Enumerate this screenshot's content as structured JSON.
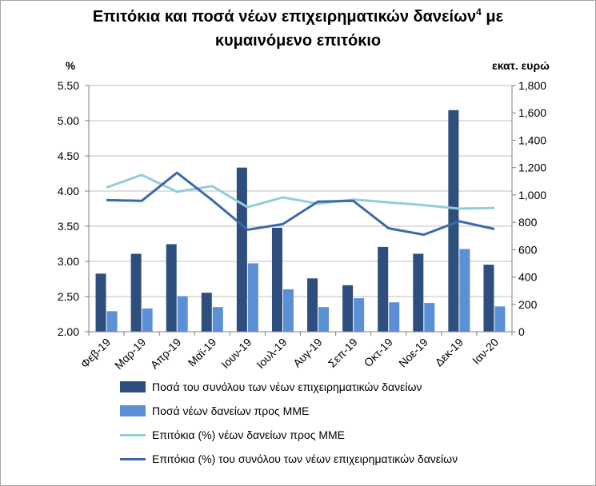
{
  "title": {
    "main": "Επιτόκια και ποσά νέων επιχειρηματικών δανείων",
    "footnote": "4",
    "line1_end": "με",
    "line2": "κυμαινόμενο επιτόκιο"
  },
  "colors": {
    "total_amount_bar": "#2e4e7e",
    "sme_amount_bar": "#5b8fd6",
    "sme_rate_line": "#92cddc",
    "total_rate_line": "#3b6aa8",
    "gridline": "#bfbfbf"
  },
  "chart_data": {
    "type": "bar",
    "title": "Επιτόκια και ποσά νέων επιχειρηματικών δανείων4 με κυμαινόμενο επιτόκιο",
    "categories": [
      "Φεβ-19",
      "Μαρ-19",
      "Απρ-19",
      "Μαϊ-19",
      "Ιουν-19",
      "Ιουλ-19",
      "Αυγ-19",
      "Σεπ-19",
      "Οκτ-19",
      "Νοε-19",
      "Δεκ-19",
      "Ιαν-20"
    ],
    "left_axis": {
      "label": "%",
      "ylim": [
        2.0,
        5.5
      ],
      "ticks": [
        "2.00",
        "2.50",
        "3.00",
        "3.50",
        "4.00",
        "4.50",
        "5.00",
        "5.50"
      ]
    },
    "right_axis": {
      "label": "εκατ. ευρώ",
      "ylim": [
        0,
        1800
      ],
      "ticks": [
        "0",
        "200",
        "400",
        "600",
        "800",
        "1,000",
        "1,200",
        "1,400",
        "1,600",
        "1,800"
      ]
    },
    "grid": true,
    "legend_position": "bottom",
    "series": [
      {
        "name": "Ποσά του συνόλου των νέων επιχειρηματικών δανείων",
        "type": "bar",
        "axis": "right",
        "values": [
          425,
          570,
          640,
          285,
          1200,
          760,
          390,
          340,
          620,
          570,
          1620,
          490
        ]
      },
      {
        "name": "Ποσά νέων δανείων προς ΜΜΕ",
        "type": "bar",
        "axis": "right",
        "values": [
          150,
          170,
          260,
          180,
          500,
          310,
          180,
          245,
          215,
          210,
          605,
          185
        ]
      },
      {
        "name": "Επιτόκια (%) νέων δανείων προς ΜΜΕ",
        "type": "line",
        "axis": "left",
        "values": [
          4.05,
          4.23,
          3.99,
          4.07,
          3.77,
          3.91,
          3.82,
          3.88,
          3.84,
          3.8,
          3.75,
          3.76
        ]
      },
      {
        "name": "Επιτόκια (%) του συνόλου των νέων επιχειρηματικών δανείων",
        "type": "line",
        "axis": "left",
        "values": [
          3.87,
          3.86,
          4.26,
          3.87,
          3.45,
          3.53,
          3.85,
          3.86,
          3.47,
          3.38,
          3.57,
          3.46
        ]
      }
    ]
  }
}
